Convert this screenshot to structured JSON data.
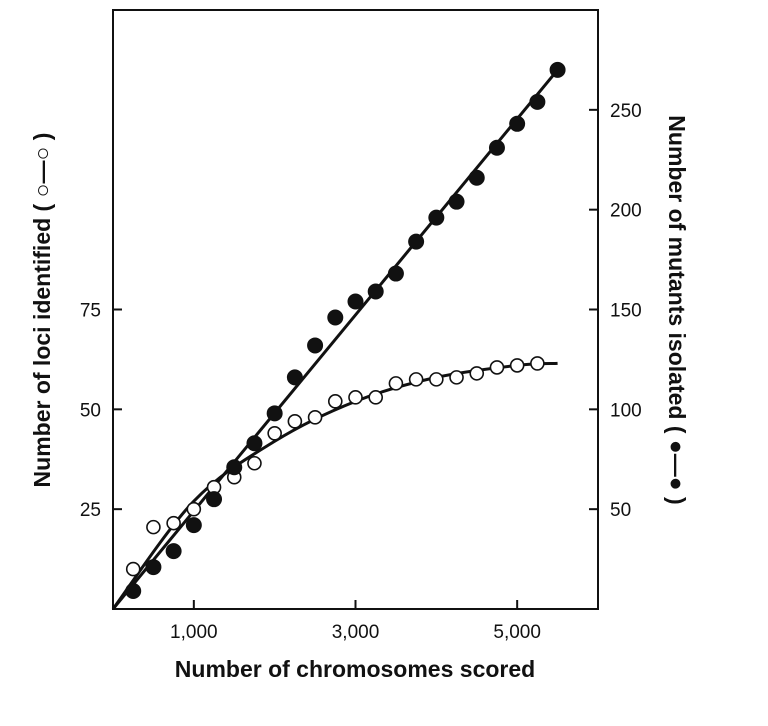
{
  "chart_data": {
    "type": "scatter",
    "title": "",
    "xlabel": "Number of chromosomes scored",
    "ylabel_left": "Number of loci identified ( ○—○ )",
    "ylabel_right": "Number of mutants isolated ( ●—● )",
    "x_range": [
      0,
      6000
    ],
    "y_left_range": [
      0,
      150
    ],
    "y_right_range": [
      0,
      300
    ],
    "x_ticks": [
      {
        "value": 1000,
        "label": "1,000"
      },
      {
        "value": 3000,
        "label": "3,000"
      },
      {
        "value": 5000,
        "label": "5,000"
      }
    ],
    "y_left_ticks": [
      {
        "value": 25,
        "label": "25"
      },
      {
        "value": 50,
        "label": "50"
      },
      {
        "value": 75,
        "label": "75"
      }
    ],
    "y_right_ticks": [
      {
        "value": 50,
        "label": "50"
      },
      {
        "value": 100,
        "label": "100"
      },
      {
        "value": 150,
        "label": "150"
      },
      {
        "value": 200,
        "label": "200"
      },
      {
        "value": 250,
        "label": "250"
      }
    ],
    "grid": false,
    "legend": "none",
    "series": [
      {
        "name": "Number of loci identified",
        "axis": "left",
        "marker": "open-circle",
        "x": [
          250,
          500,
          750,
          1000,
          1250,
          1500,
          1750,
          2000,
          2250,
          2500,
          2750,
          3000,
          3250,
          3500,
          3750,
          4000,
          4250,
          4500,
          4750,
          5000,
          5250
        ],
        "y": [
          10,
          20.5,
          21.5,
          25,
          30.5,
          33,
          36.5,
          44,
          47,
          48,
          52,
          53,
          53,
          56.5,
          57.5,
          57.5,
          58,
          59,
          60.5,
          61,
          61.5
        ],
        "fit": {
          "x": [
            0,
            1000,
            2000,
            3000,
            4000,
            5000,
            5500
          ],
          "y": [
            0,
            27,
            42,
            52,
            58,
            61,
            61.5
          ]
        }
      },
      {
        "name": "Number of mutants isolated",
        "axis": "right",
        "marker": "filled-circle",
        "x": [
          250,
          500,
          750,
          1000,
          1250,
          1500,
          1750,
          2000,
          2250,
          2500,
          2750,
          3000,
          3250,
          3500,
          3750,
          4000,
          4250,
          4500,
          4750,
          5000,
          5250,
          5500
        ],
        "y": [
          9,
          21,
          29,
          42,
          55,
          71,
          83,
          98,
          116,
          132,
          146,
          154,
          159,
          168,
          184,
          196,
          204,
          216,
          231,
          243,
          254,
          270
        ],
        "fit": {
          "x": [
            0,
            5500
          ],
          "y": [
            0,
            270
          ]
        }
      }
    ]
  }
}
